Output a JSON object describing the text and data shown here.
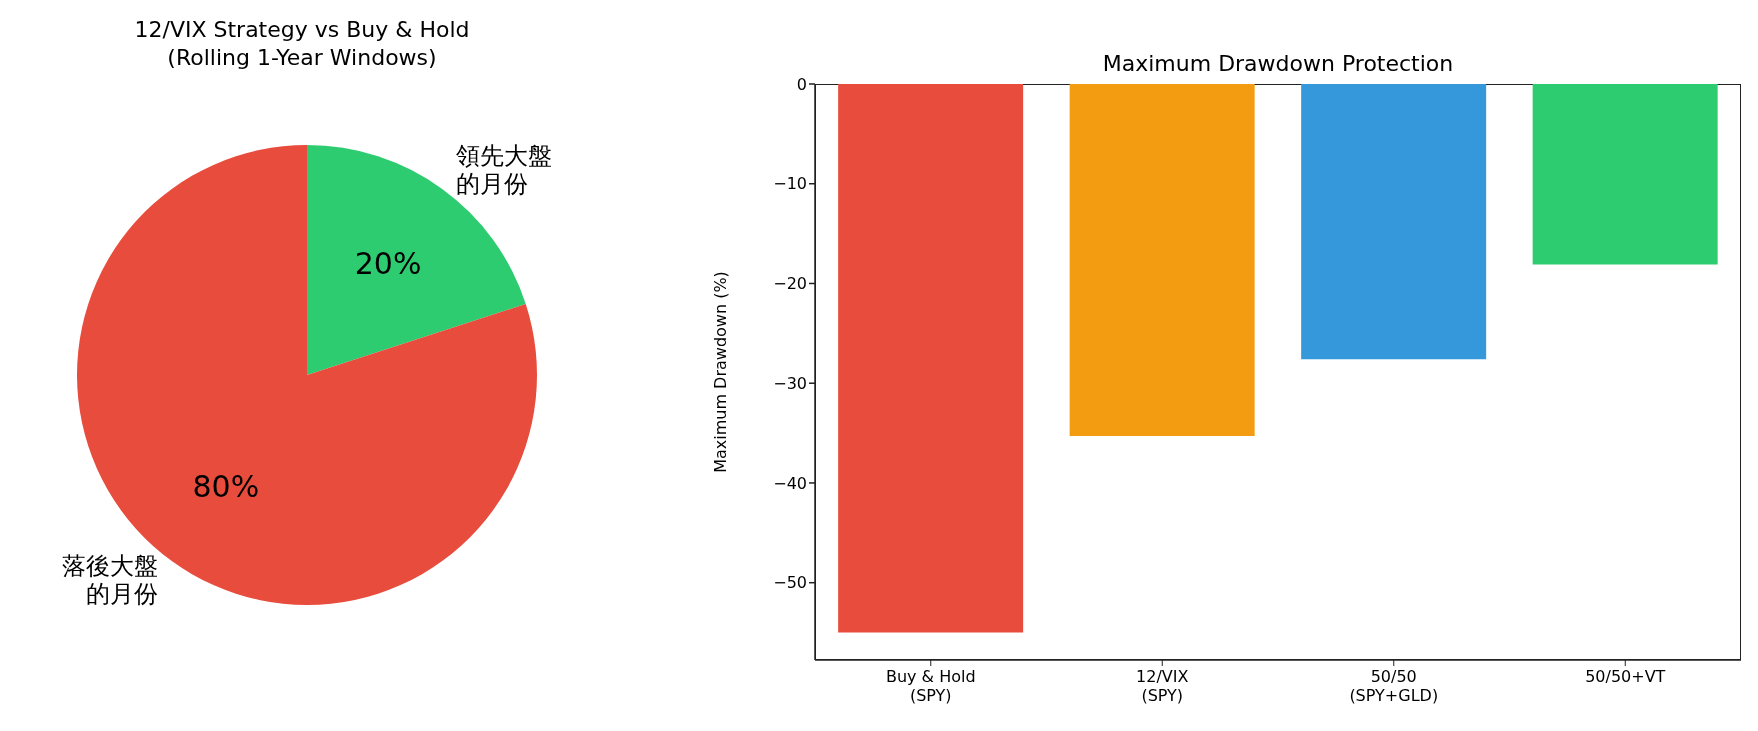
{
  "chart_data": [
    {
      "type": "pie",
      "title": "12/VIX Strategy vs Buy & Hold\n(Rolling 1-Year Windows)",
      "categories": [
        "領先大盤的月份",
        "落後大盤的月份"
      ],
      "values": [
        20,
        80
      ],
      "colors": [
        "#2ecc71",
        "#e74c3c"
      ],
      "value_labels": [
        "20%",
        "80%"
      ]
    },
    {
      "type": "bar",
      "title": "Maximum Drawdown Protection",
      "ylabel": "Maximum Drawdown (%)",
      "categories": [
        "Buy & Hold\n(SPY)",
        "12/VIX\n(SPY)",
        "50/50\n(SPY+GLD)",
        "50/50+VT"
      ],
      "values": [
        -55.0,
        -35.3,
        -27.6,
        -18.1
      ],
      "colors": [
        "#e74c3c",
        "#f39c12",
        "#3498db",
        "#2ecc71"
      ],
      "ylim": [
        -57.75,
        0
      ],
      "yticks": [
        -50,
        -40,
        -30,
        -20,
        -10,
        0
      ]
    }
  ]
}
